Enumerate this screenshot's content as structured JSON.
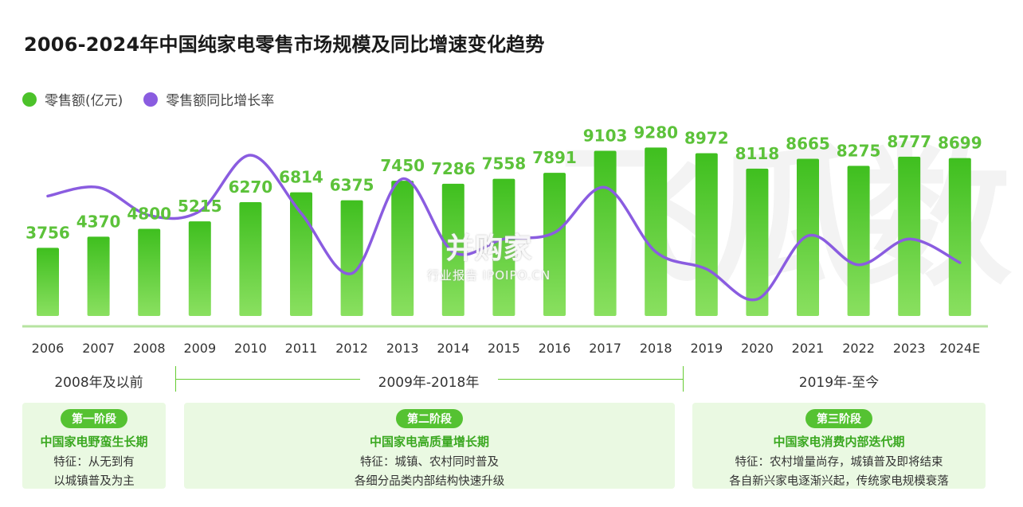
{
  "title": "2006-2024年中国纯家电零售市场规模及同比增速变化趋势",
  "legend": {
    "bar_label": "零售额(亿元)",
    "line_label": "零售额同比增长率"
  },
  "colors": {
    "bar": "#4cc22a",
    "bar_light": "#7fdc55",
    "line": "#8a5ce0",
    "axis": "#b6e3a0",
    "accent": "#55c232"
  },
  "watermark": {
    "main": "并购家",
    "sub": "行业报告 IPOIPO.CN",
    "background": "飞瓜数"
  },
  "chart_data": {
    "type": "bar",
    "categories": [
      "2006",
      "2007",
      "2008",
      "2009",
      "2010",
      "2011",
      "2012",
      "2013",
      "2014",
      "2015",
      "2016",
      "2017",
      "2018",
      "2019",
      "2020",
      "2021",
      "2022",
      "2023",
      "2024E"
    ],
    "series": [
      {
        "name": "零售额(亿元)",
        "type": "bar",
        "values": [
          3756,
          4370,
          4800,
          5215,
          6270,
          6814,
          6375,
          7450,
          7286,
          7558,
          7891,
          9103,
          9280,
          8972,
          8118,
          8665,
          8275,
          8777,
          8699
        ]
      },
      {
        "name": "零售额同比增长率",
        "type": "line",
        "values": [
          0.62,
          0.7,
          0.44,
          0.48,
          1.0,
          0.46,
          -0.1,
          0.78,
          0.1,
          0.22,
          0.28,
          0.7,
          0.1,
          -0.06,
          -0.34,
          0.25,
          -0.02,
          0.22,
          0.0
        ]
      }
    ],
    "legend_position": "top-left",
    "grid": false
  },
  "periods": [
    {
      "label": "2008年及以前",
      "badge": "第一阶段",
      "subtitle": "中国家电野蛮生长期",
      "desc_line1": "特征：从无到有",
      "desc_line2": "以城镇普及为主"
    },
    {
      "label": "2009年-2018年",
      "badge": "第二阶段",
      "subtitle": "中国家电高质量增长期",
      "desc_line1": "特征：城镇、农村同时普及",
      "desc_line2": "各细分品类内部结构快速升级"
    },
    {
      "label": "2019年-至今",
      "badge": "第三阶段",
      "subtitle": "中国家电消费内部迭代期",
      "desc_line1": "特征：农村增量尚存，城镇普及即将结束",
      "desc_line2": "各自新兴家电逐渐兴起，传统家电规模衰落"
    }
  ]
}
